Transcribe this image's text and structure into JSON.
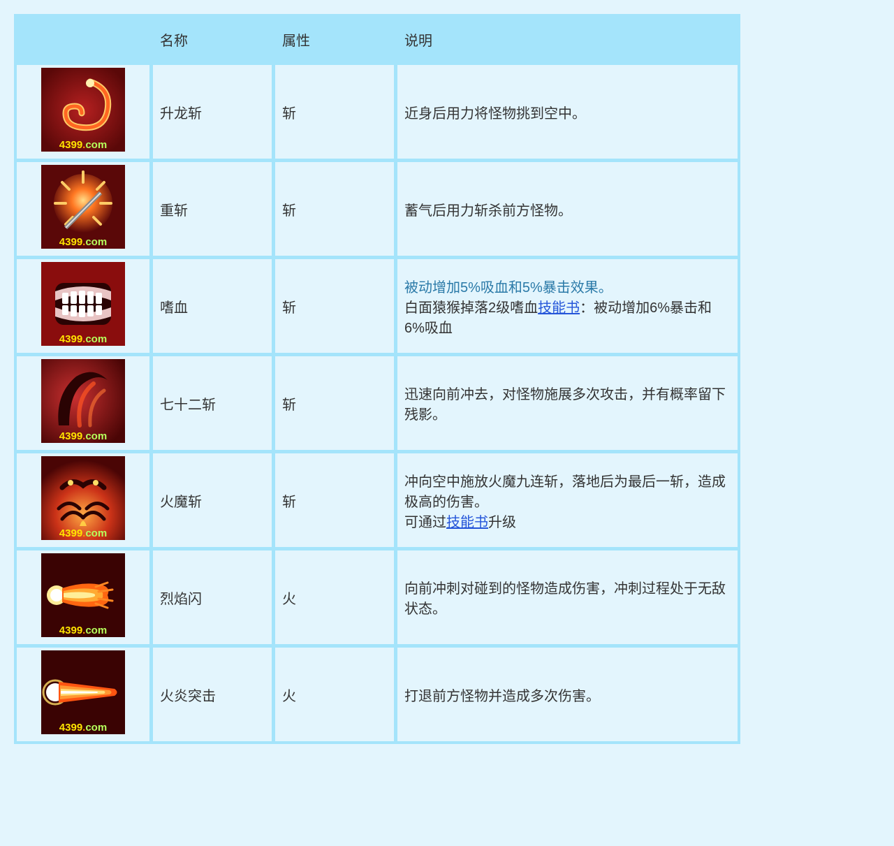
{
  "watermark": {
    "num": "4399",
    "dot": ".",
    "com": "com"
  },
  "colors": {
    "page_bg": "#e3f5fd",
    "table_border": "#a4e4fb",
    "header_bg": "#a4e4fb",
    "cell_bg": "#e3f5fd",
    "link": "#2455d9",
    "highlight": "#2b7aa8",
    "icon_bg": "#7a0d0d"
  },
  "headers": {
    "icon": "",
    "name": "名称",
    "attr": "属性",
    "desc": "说明"
  },
  "linkText": "技能书",
  "rows": [
    {
      "icon": "dragon-rise",
      "name": "升龙斩",
      "attr": "斩",
      "desc": [
        {
          "t": "text",
          "v": "近身后用力将怪物挑到空中。"
        }
      ]
    },
    {
      "icon": "heavy-slash",
      "name": "重斩",
      "attr": "斩",
      "desc": [
        {
          "t": "text",
          "v": "蓄气后用力斩杀前方怪物。"
        }
      ]
    },
    {
      "icon": "bloodlust",
      "name": "嗜血",
      "attr": "斩",
      "desc": [
        {
          "t": "highlight",
          "v": "被动增加5%吸血和5%暴击效果。"
        },
        {
          "t": "br"
        },
        {
          "t": "text",
          "v": "白面猿猴掉落2级嗜血"
        },
        {
          "t": "link",
          "v": "技能书"
        },
        {
          "t": "text",
          "v": "：被动增加6%暴击和6%吸血"
        }
      ]
    },
    {
      "icon": "seventy-two",
      "name": "七十二斩",
      "attr": "斩",
      "desc": [
        {
          "t": "text",
          "v": "迅速向前冲去，对怪物施展多次攻击，并有概率留下残影。"
        }
      ]
    },
    {
      "icon": "fire-demon",
      "name": "火魔斩",
      "attr": "斩",
      "desc": [
        {
          "t": "text",
          "v": "冲向空中施放火魔九连斩，落地后为最后一斩，造成极高的伤害。"
        },
        {
          "t": "br"
        },
        {
          "t": "text",
          "v": "可通过"
        },
        {
          "t": "link",
          "v": "技能书"
        },
        {
          "t": "text",
          "v": "升级"
        }
      ]
    },
    {
      "icon": "blaze-flash",
      "name": "烈焰闪",
      "attr": "火",
      "desc": [
        {
          "t": "text",
          "v": "向前冲刺对碰到的怪物造成伤害，冲刺过程处于无敌状态。"
        }
      ]
    },
    {
      "icon": "flame-assault",
      "name": "火炎突击",
      "attr": "火",
      "desc": [
        {
          "t": "text",
          "v": "打退前方怪物并造成多次伤害。"
        }
      ]
    }
  ],
  "iconDefs": {
    "dragon-rise": "<defs><radialGradient id='g1' cx='50%' cy='50%' r='60%'><stop offset='0%' stop-color='#b52020'/><stop offset='100%' stop-color='#5a0808'/></radialGradient></defs><rect width='120' height='120' fill='url(#g1)'/><path d='M 70 20 Q 100 30 95 60 Q 90 90 55 85 Q 35 82 35 65 Q 35 55 48 55 Q 58 55 58 65' fill='none' stroke='#ffcc66' stroke-width='9' stroke-linecap='round'/><path d='M 70 20 Q 100 30 95 60 Q 90 90 55 85 Q 35 82 35 65 Q 35 55 48 55 Q 58 55 58 65' fill='none' stroke='#ff6622' stroke-width='5' stroke-linecap='round'/><circle cx='70' cy='22' r='6' fill='#fff2b0'/>",
    "heavy-slash": "<defs><radialGradient id='g2' cx='50%' cy='45%' r='55%'><stop offset='0%' stop-color='#ffdd88'/><stop offset='35%' stop-color='#ff7722'/><stop offset='100%' stop-color='#5a0808'/></radialGradient></defs><rect width='120' height='120' fill='#5a0808'/><circle cx='60' cy='55' r='42' fill='url(#g2)'/><g stroke='#ffcc66' stroke-width='4' stroke-linecap='round'><line x1='60' y1='10' x2='60' y2='25'/><line x1='20' y1='55' x2='35' y2='55'/><line x1='85' y1='55' x2='100' y2='55'/><line x1='30' y1='25' x2='40' y2='35'/><line x1='80' y1='35' x2='90' y2='25'/><line x1='35' y1='85' x2='45' y2='75'/><line x1='75' y1='75' x2='85' y2='85'/></g><line x1='35' y1='90' x2='85' y2='40' stroke='#888' stroke-width='6'/><line x1='35' y1='90' x2='85' y2='40' stroke='#ddd' stroke-width='2'/>",
    "bloodlust": "<rect width='120' height='120' fill='#8a0d0d'/><rect x='20' y='30' width='80' height='60' rx='12' fill='#2a0303'/><path d='M 20 55 Q 60 40 100 55 L 100 42 Q 60 28 20 42 Z' fill='#e8c4c4'/><path d='M 20 65 Q 60 80 100 65 L 100 78 Q 60 92 20 78 Z' fill='#e8c4c4'/><g fill='#fff'><rect x='30' y='44' width='9' height='16' rx='2'/><rect x='42' y='42' width='9' height='18' rx='2'/><rect x='54' y='41' width='9' height='19' rx='2'/><rect x='66' y='42' width='9' height='18' rx='2'/><rect x='78' y='44' width='9' height='16' rx='2'/><rect x='30' y='62' width='9' height='14' rx='2'/><rect x='42' y='62' width='9' height='16' rx='2'/><rect x='54' y='62' width='9' height='17' rx='2'/><rect x='66' y='62' width='9' height='16' rx='2'/><rect x='78' y='62' width='9' height='14' rx='2'/></g>",
    "seventy-two": "<defs><radialGradient id='g4' cx='40%' cy='45%' r='70%'><stop offset='0%' stop-color='#c93030'/><stop offset='100%' stop-color='#4a0505'/></radialGradient></defs><rect width='120' height='120' fill='url(#g4)'/><path d='M 25 95 Q 20 50 50 25 Q 75 10 95 30 Q 80 20 60 35 Q 40 50 40 95 Z' fill='#2a0303'/><path d='M 55 95 Q 50 55 75 35' fill='none' stroke='#ff5522' stroke-width='6' stroke-linecap='round' opacity='0.7'/><path d='M 70 95 Q 68 60 90 45' fill='none' stroke='#ff7733' stroke-width='5' stroke-linecap='round' opacity='0.6'/>",
    "fire-demon": "<defs><radialGradient id='g5' cx='50%' cy='70%' r='65%'><stop offset='0%' stop-color='#ffaa44'/><stop offset='50%' stop-color='#cc3318'/><stop offset='100%' stop-color='#4a0505'/></radialGradient></defs><rect width='120' height='120' fill='url(#g5)'/><path d='M 30 45 Q 45 30 60 42 Q 75 30 90 45' fill='none' stroke='#2a0303' stroke-width='7' stroke-linecap='round'/><circle cx='42' cy='38' r='4' fill='#ffdd66'/><circle cx='78' cy='38' r='4' fill='#ffdd66'/><path d='M 25 75 Q 40 60 55 75' fill='none' stroke='#2a0303' stroke-width='5' stroke-linecap='round'/><path d='M 30 90 Q 45 72 60 88' fill='none' stroke='#2a0303' stroke-width='5' stroke-linecap='round'/><path d='M 65 75 Q 80 60 95 75' fill='none' stroke='#2a0303' stroke-width='5' stroke-linecap='round'/><path d='M 60 88 Q 75 72 90 90' fill='none' stroke='#2a0303' stroke-width='5' stroke-linecap='round'/><path d='M 55 100 Q 60 85 65 100' fill='#ffcc44'/>",
    "blaze-flash": "<rect width='120' height='120' fill='#3a0303'/><circle cx='22' cy='60' r='14' fill='#ffee99'/><circle cx='22' cy='60' r='9' fill='#fff'/><path d='M 30 50 Q 60 40 85 45 Q 100 48 95 60 Q 100 72 85 75 Q 60 80 30 70 Z' fill='#ff6611'/><path d='M 32 54 Q 58 48 80 52 Q 90 55 88 60 Q 90 65 80 68 Q 58 72 32 66 Z' fill='#ffaa33'/><path d='M 32 57 Q 55 54 72 57 Q 78 58 77 60 Q 78 62 72 63 Q 55 66 32 63 Z' fill='#ffee99'/><path d='M 78 48 L 95 42 M 82 55 L 102 52 M 82 65 L 102 68 M 78 72 L 95 78' stroke='#ff8822' stroke-width='3' stroke-linecap='round'/>",
    "flame-assault": "<rect width='120' height='120' fill='#3a0303'/><circle cx='20' cy='60' r='13' fill='#fff'/><circle cx='20' cy='60' r='17' fill='none' stroke='#ffdd66' stroke-width='3' opacity='0.8'/><path d='M 25 45 L 105 55 Q 112 60 105 65 L 25 75 Z' fill='#ff5511'/><path d='M 27 50 L 98 57 Q 103 60 98 63 L 27 70 Z' fill='#ff9933'/><path d='M 28 55 L 90 58 Q 93 60 90 62 L 28 65 Z' fill='#ffdd77'/><path d='M 28 58 L 80 59 Q 82 60 80 61 L 28 62 Z' fill='#fff'/>"
  }
}
